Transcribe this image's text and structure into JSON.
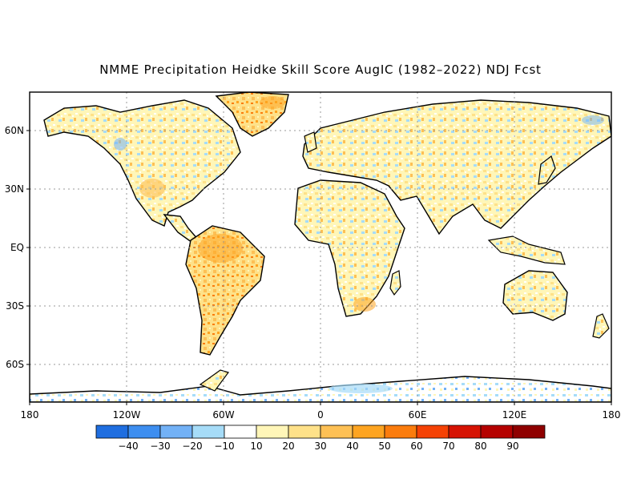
{
  "title": "NMME Precipitation Heidke Skill Score AugIC (1982–2022) NDJ Fcst",
  "map": {
    "y_ticks": [
      "60N",
      "30N",
      "EQ",
      "30S",
      "60S"
    ],
    "x_ticks": [
      "180",
      "120W",
      "60W",
      "0",
      "60E",
      "120E",
      "180"
    ],
    "colors": {
      "land_outline": "#000000",
      "grid": "#9a9a9a",
      "ocean": "#ffffff"
    }
  },
  "colorbar": {
    "labels": [
      "-40",
      "-30",
      "-20",
      "-10",
      "10",
      "20",
      "30",
      "40",
      "50",
      "60",
      "70",
      "80",
      "90"
    ],
    "colors": [
      "#1f6ee0",
      "#3d8ef0",
      "#72b1f6",
      "#a6dcf8",
      "#ffffff",
      "#fff6b8",
      "#fee189",
      "#fdc055",
      "#fda421",
      "#fb7c0d",
      "#f54205",
      "#d61303",
      "#b50100",
      "#8f0000"
    ]
  }
}
